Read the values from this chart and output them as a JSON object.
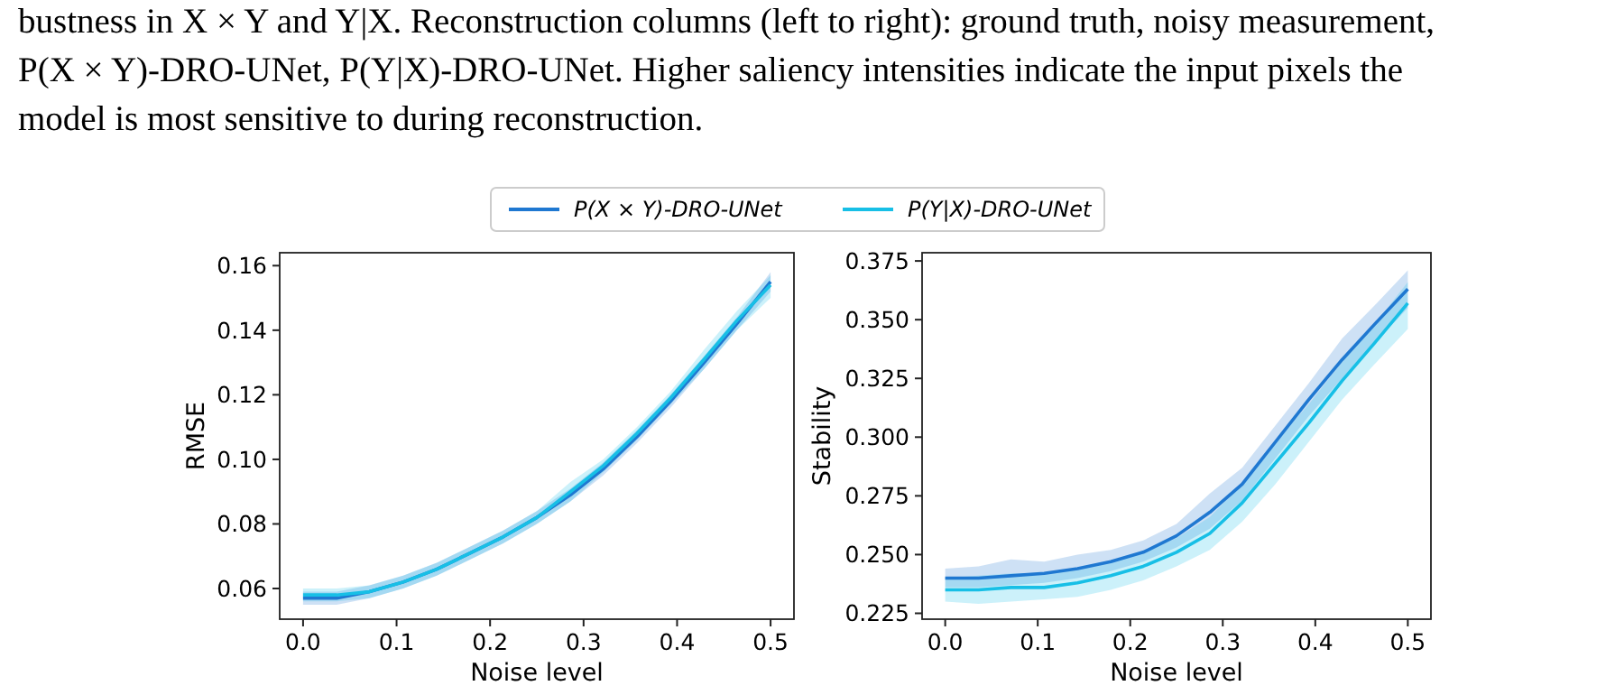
{
  "chart_data": [
    {
      "type": "other",
      "annotations": [
        "bustness in X × Y and Y|X. Reconstruction columns (left to right): ground truth, noisy measurement,",
        "P(X × Y)-DRO-UNet, P(Y|X)-DRO-UNet. Higher saliency intensities indicate the input pixels the",
        "model is most sensitive to during reconstruction."
      ]
    },
    {
      "type": "line",
      "xlabel": "Noise level",
      "ylabel": "RMSE",
      "legend": "top",
      "grid": false,
      "x": [
        0,
        0.036,
        0.071,
        0.107,
        0.143,
        0.179,
        0.214,
        0.25,
        0.286,
        0.321,
        0.357,
        0.393,
        0.429,
        0.464,
        0.5
      ],
      "xlim": [
        -0.025,
        0.525
      ],
      "xticks": [
        {
          "value": 0,
          "label": "0.0"
        },
        0.1,
        0.2,
        0.3,
        0.4,
        0.5
      ],
      "ylim": [
        0.0505,
        0.164
      ],
      "yticks": [
        {
          "value": 0.06,
          "label": "0.06"
        },
        {
          "value": 0.08,
          "label": "0.08"
        },
        {
          "value": 0.1,
          "label": "0.10"
        },
        {
          "value": 0.12,
          "label": "0.12"
        },
        {
          "value": 0.14,
          "label": "0.14"
        },
        {
          "value": 0.16,
          "label": "0.16"
        }
      ],
      "series": [
        {
          "name": "P(X × Y)-DRO-UNet",
          "color": "#1f78d1",
          "values": [
            0.057,
            0.057,
            0.059,
            0.062,
            0.066,
            0.071,
            0.076,
            0.082,
            0.089,
            0.097,
            0.107,
            0.118,
            0.13,
            0.142,
            0.155
          ],
          "lower": [
            0.055,
            0.055,
            0.057,
            0.06,
            0.064,
            0.069,
            0.074,
            0.08,
            0.087,
            0.095,
            0.105,
            0.116,
            0.128,
            0.14,
            0.152
          ],
          "upper": [
            0.059,
            0.059,
            0.061,
            0.064,
            0.068,
            0.073,
            0.078,
            0.084,
            0.091,
            0.099,
            0.109,
            0.12,
            0.132,
            0.144,
            0.158
          ]
        },
        {
          "name": "P(Y|X)-DRO-UNet",
          "color": "#17bfe6",
          "values": [
            0.058,
            0.058,
            0.059,
            0.062,
            0.066,
            0.071,
            0.076,
            0.082,
            0.09,
            0.098,
            0.108,
            0.119,
            0.131,
            0.143,
            0.154
          ],
          "lower": [
            0.056,
            0.056,
            0.057,
            0.06,
            0.064,
            0.069,
            0.074,
            0.08,
            0.087,
            0.096,
            0.106,
            0.117,
            0.128,
            0.14,
            0.15
          ],
          "upper": [
            0.06,
            0.06,
            0.061,
            0.064,
            0.068,
            0.073,
            0.078,
            0.084,
            0.093,
            0.1,
            0.11,
            0.121,
            0.134,
            0.146,
            0.157
          ]
        }
      ]
    },
    {
      "type": "line",
      "xlabel": "Noise level",
      "ylabel": "Stability",
      "grid": false,
      "x": [
        0,
        0.036,
        0.071,
        0.107,
        0.143,
        0.179,
        0.214,
        0.25,
        0.286,
        0.321,
        0.357,
        0.393,
        0.429,
        0.464,
        0.5
      ],
      "xlim": [
        -0.025,
        0.525
      ],
      "xticks": [
        {
          "value": 0,
          "label": "0.0"
        },
        0.1,
        0.2,
        0.3,
        0.4,
        0.5
      ],
      "ylim": [
        0.2225,
        0.3785
      ],
      "yticks": [
        0.225,
        {
          "value": 0.25,
          "label": "0.250"
        },
        0.275,
        {
          "value": 0.3,
          "label": "0.300"
        },
        0.325,
        {
          "value": 0.35,
          "label": "0.350"
        },
        0.375
      ],
      "series": [
        {
          "color": "#1f78d1",
          "values": [
            0.24,
            0.24,
            0.241,
            0.242,
            0.244,
            0.247,
            0.251,
            0.258,
            0.268,
            0.28,
            0.298,
            0.316,
            0.333,
            0.348,
            0.363
          ],
          "lower": [
            0.236,
            0.236,
            0.237,
            0.238,
            0.24,
            0.243,
            0.247,
            0.253,
            0.261,
            0.273,
            0.291,
            0.309,
            0.325,
            0.34,
            0.355
          ],
          "upper": [
            0.244,
            0.245,
            0.248,
            0.247,
            0.25,
            0.252,
            0.256,
            0.263,
            0.276,
            0.287,
            0.305,
            0.323,
            0.342,
            0.356,
            0.371
          ]
        },
        {
          "color": "#17bfe6",
          "values": [
            0.235,
            0.235,
            0.236,
            0.236,
            0.238,
            0.241,
            0.245,
            0.251,
            0.259,
            0.272,
            0.289,
            0.306,
            0.324,
            0.34,
            0.357
          ],
          "lower": [
            0.23,
            0.229,
            0.23,
            0.231,
            0.232,
            0.235,
            0.239,
            0.245,
            0.252,
            0.264,
            0.28,
            0.298,
            0.316,
            0.331,
            0.346
          ],
          "upper": [
            0.24,
            0.241,
            0.242,
            0.242,
            0.244,
            0.247,
            0.251,
            0.257,
            0.266,
            0.28,
            0.298,
            0.314,
            0.332,
            0.348,
            0.366
          ]
        }
      ]
    }
  ]
}
